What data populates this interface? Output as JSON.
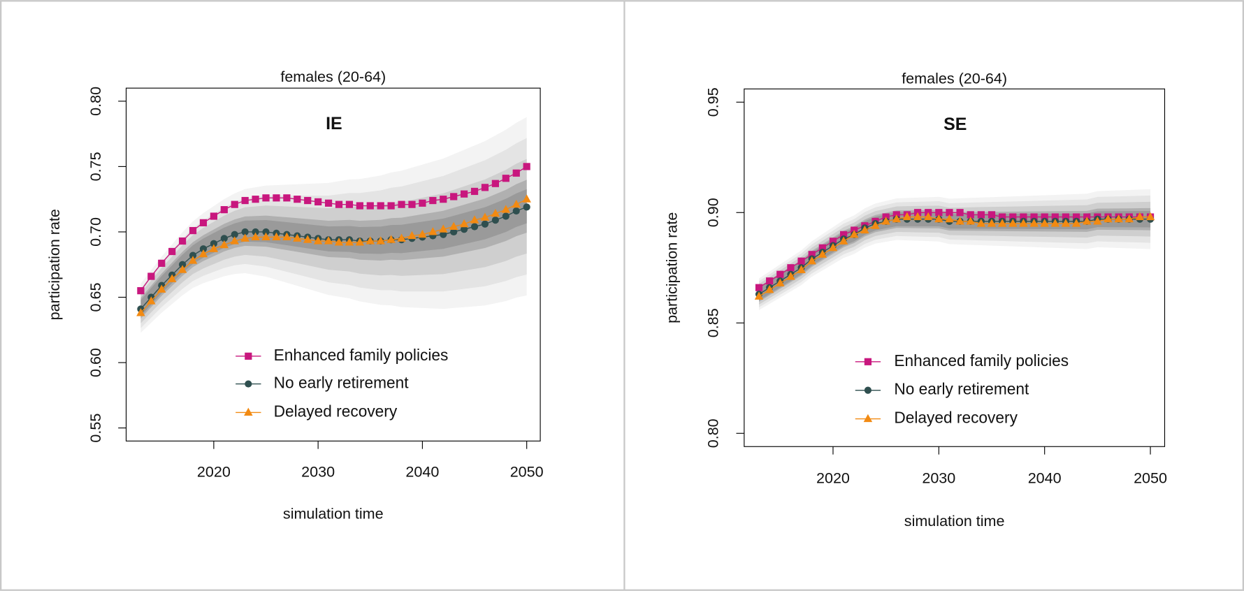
{
  "chart_data": [
    {
      "type": "line",
      "title": "females (20-64)",
      "annotation": "IE",
      "xlabel": "simulation time",
      "ylabel": "participation rate",
      "x": [
        2013,
        2014,
        2015,
        2016,
        2017,
        2018,
        2019,
        2020,
        2021,
        2022,
        2023,
        2024,
        2025,
        2026,
        2027,
        2028,
        2029,
        2030,
        2031,
        2032,
        2033,
        2034,
        2035,
        2036,
        2037,
        2038,
        2039,
        2040,
        2041,
        2042,
        2043,
        2044,
        2045,
        2046,
        2047,
        2048,
        2049,
        2050
      ],
      "series": [
        {
          "name": "Enhanced family policies",
          "color": "#c8177e",
          "marker": "square",
          "values": [
            0.655,
            0.666,
            0.676,
            0.685,
            0.693,
            0.701,
            0.707,
            0.712,
            0.717,
            0.721,
            0.724,
            0.725,
            0.726,
            0.726,
            0.726,
            0.725,
            0.724,
            0.723,
            0.722,
            0.721,
            0.721,
            0.72,
            0.72,
            0.72,
            0.72,
            0.721,
            0.721,
            0.722,
            0.724,
            0.725,
            0.727,
            0.729,
            0.731,
            0.734,
            0.737,
            0.741,
            0.745,
            0.75
          ]
        },
        {
          "name": "No early retirement",
          "color": "#2f4f4f",
          "marker": "circle",
          "values": [
            0.641,
            0.65,
            0.659,
            0.667,
            0.675,
            0.682,
            0.687,
            0.691,
            0.695,
            0.698,
            0.7,
            0.7,
            0.7,
            0.699,
            0.698,
            0.697,
            0.696,
            0.695,
            0.694,
            0.694,
            0.694,
            0.693,
            0.693,
            0.693,
            0.694,
            0.694,
            0.695,
            0.696,
            0.697,
            0.698,
            0.7,
            0.702,
            0.704,
            0.706,
            0.709,
            0.712,
            0.716,
            0.719
          ]
        },
        {
          "name": "Delayed recovery",
          "color": "#f28a12",
          "marker": "triangle",
          "values": [
            0.638,
            0.647,
            0.656,
            0.664,
            0.671,
            0.678,
            0.683,
            0.687,
            0.69,
            0.693,
            0.695,
            0.696,
            0.696,
            0.696,
            0.696,
            0.695,
            0.694,
            0.693,
            0.693,
            0.692,
            0.692,
            0.692,
            0.693,
            0.693,
            0.694,
            0.695,
            0.697,
            0.698,
            0.7,
            0.702,
            0.704,
            0.706,
            0.709,
            0.711,
            0.714,
            0.717,
            0.721,
            0.725
          ]
        }
      ],
      "xlim": [
        2011.6,
        2051.3
      ],
      "xticks": [
        2020,
        2030,
        2040,
        2050
      ],
      "ylim": [
        0.54,
        0.81
      ],
      "yticks": [
        0.55,
        {
          "value": 0.6,
          "label": "0.60"
        },
        0.65,
        {
          "value": 0.7,
          "label": "0.70"
        },
        0.75,
        {
          "value": 0.8,
          "label": "0.80"
        }
      ],
      "legend": "bottom"
    },
    {
      "type": "line",
      "title": "females (20-64)",
      "annotation": "SE",
      "xlabel": "simulation time",
      "ylabel": "participation rate",
      "x": [
        2013,
        2014,
        2015,
        2016,
        2017,
        2018,
        2019,
        2020,
        2021,
        2022,
        2023,
        2024,
        2025,
        2026,
        2027,
        2028,
        2029,
        2030,
        2031,
        2032,
        2033,
        2034,
        2035,
        2036,
        2037,
        2038,
        2039,
        2040,
        2041,
        2042,
        2043,
        2044,
        2045,
        2046,
        2047,
        2048,
        2049,
        2050
      ],
      "series": [
        {
          "name": "Enhanced family policies",
          "color": "#c8177e",
          "marker": "square",
          "values": [
            0.866,
            0.869,
            0.872,
            0.875,
            0.878,
            0.881,
            0.884,
            0.887,
            0.89,
            0.892,
            0.894,
            0.896,
            0.898,
            0.899,
            0.899,
            0.9,
            0.9,
            0.9,
            0.9,
            0.9,
            0.899,
            0.899,
            0.899,
            0.898,
            0.898,
            0.898,
            0.898,
            0.898,
            0.898,
            0.898,
            0.898,
            0.898,
            0.898,
            0.898,
            0.898,
            0.898,
            0.898,
            0.898
          ]
        },
        {
          "name": "No early retirement",
          "color": "#2f4f4f",
          "marker": "circle",
          "values": [
            0.863,
            0.866,
            0.869,
            0.872,
            0.875,
            0.879,
            0.882,
            0.885,
            0.888,
            0.89,
            0.893,
            0.895,
            0.896,
            0.897,
            0.897,
            0.897,
            0.897,
            0.897,
            0.896,
            0.896,
            0.896,
            0.896,
            0.896,
            0.896,
            0.896,
            0.896,
            0.896,
            0.896,
            0.896,
            0.896,
            0.896,
            0.896,
            0.897,
            0.897,
            0.897,
            0.897,
            0.897,
            0.897
          ]
        },
        {
          "name": "Delayed recovery",
          "color": "#f28a12",
          "marker": "triangle",
          "values": [
            0.862,
            0.865,
            0.868,
            0.871,
            0.874,
            0.878,
            0.881,
            0.884,
            0.887,
            0.89,
            0.892,
            0.894,
            0.896,
            0.897,
            0.898,
            0.898,
            0.898,
            0.897,
            0.897,
            0.896,
            0.896,
            0.895,
            0.895,
            0.895,
            0.895,
            0.895,
            0.895,
            0.895,
            0.895,
            0.895,
            0.895,
            0.896,
            0.896,
            0.897,
            0.897,
            0.897,
            0.898,
            0.898
          ]
        }
      ],
      "xlim": [
        2011.6,
        2051.35
      ],
      "xticks": [
        2020,
        2030,
        2040,
        2050
      ],
      "ylim": [
        0.794,
        0.956
      ],
      "yticks": [
        {
          "value": 0.8,
          "label": "0.80"
        },
        0.85,
        {
          "value": 0.9,
          "label": "0.90"
        },
        0.95
      ],
      "legend": "bottom"
    }
  ]
}
